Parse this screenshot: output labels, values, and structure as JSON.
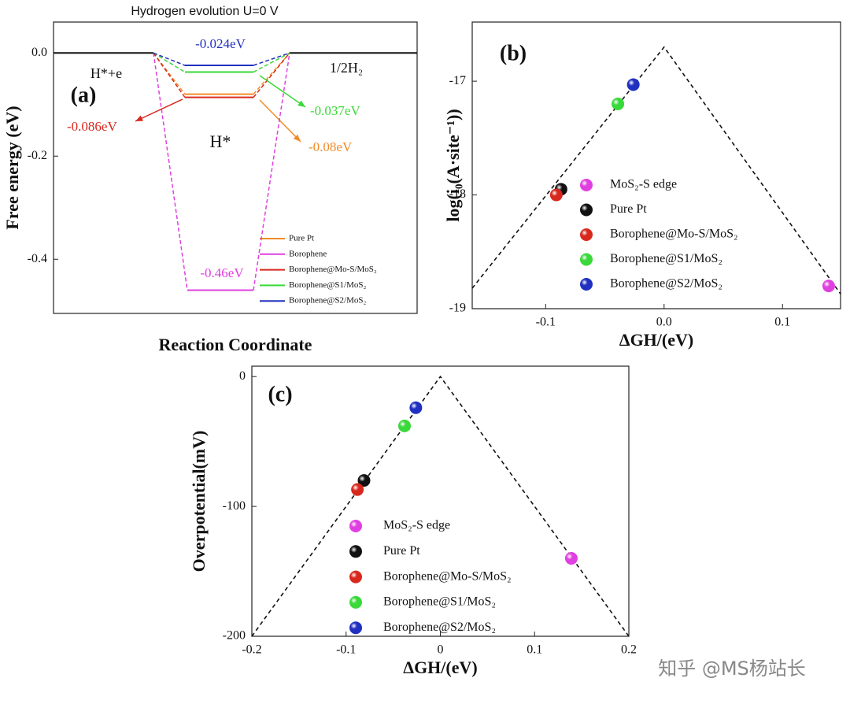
{
  "watermark": "知乎 @MS杨站长",
  "chart_data": [
    {
      "type": "step",
      "panel": "(a)",
      "title": "Hydrogen evolution U=0 V",
      "x_label": "Reaction Coordinate",
      "y_label": "Free energy (eV)",
      "states": [
        "H*+e",
        "H*",
        "1/2H₂"
      ],
      "ylim": [
        -0.505,
        0.06
      ],
      "yticks": [
        {
          "value": 0,
          "label": "0.0"
        },
        -0.2,
        -0.4
      ],
      "series": [
        {
          "name": "Pure Pt",
          "color": "#f08c2a",
          "values": [
            -0.08
          ],
          "value_labels": [
            "-0.08eV"
          ]
        },
        {
          "name": "Borophene",
          "color": "#e040e0",
          "values": [
            -0.46
          ],
          "value_labels": [
            "-0.46eV"
          ]
        },
        {
          "name": "Borophene@Mo-S/MoS₂",
          "color": "#d8281e",
          "values": [
            -0.086
          ],
          "value_labels": [
            "-0.086eV"
          ]
        },
        {
          "name": "Borophene@S1/MoS₂",
          "color": "#39d939",
          "values": [
            -0.037
          ],
          "value_labels": [
            "-0.037eV"
          ]
        },
        {
          "name": "Borophene@S2/MoS₂",
          "color": "#2030c0",
          "values": [
            -0.024
          ],
          "value_labels": [
            "-0.024eV"
          ]
        }
      ]
    },
    {
      "type": "scatter",
      "panel": "(b)",
      "x_label": "ΔGH/(eV)",
      "y_label": "log(i₀(A·site⁻¹))",
      "xlim": [
        -0.162,
        0.149
      ],
      "ylim": [
        -19,
        -16.48
      ],
      "xticks": [
        -0.1,
        {
          "value": 0,
          "label": "0.0"
        },
        0.1
      ],
      "yticks": [
        -17,
        -18,
        -19
      ],
      "trend": {
        "x": [
          -0.162,
          0,
          0.149
        ],
        "y": [
          -18.82,
          -16.7,
          -18.87
        ]
      },
      "series": [
        {
          "name": "MoS₂-S edge",
          "color": "#e040e0",
          "x": [
            0.139
          ],
          "values": [
            -18.8
          ]
        },
        {
          "name": "Pure Pt",
          "color": "#111111",
          "x": [
            -0.087
          ],
          "values": [
            -17.95
          ]
        },
        {
          "name": "Borophene@Mo-S/MoS₂",
          "color": "#d8281e",
          "x": [
            -0.091
          ],
          "values": [
            -18.0
          ]
        },
        {
          "name": "Borophene@S1/MoS₂",
          "color": "#39d939",
          "x": [
            -0.039
          ],
          "values": [
            -17.2
          ]
        },
        {
          "name": "Borophene@S2/MoS₂",
          "color": "#2030c0",
          "x": [
            -0.026
          ],
          "values": [
            -17.03
          ]
        }
      ]
    },
    {
      "type": "scatter",
      "panel": "(c)",
      "x_label": "ΔGH/(eV)",
      "y_label": "Overpotential(mV)",
      "xlim": [
        -0.2,
        0.2
      ],
      "ylim": [
        -200,
        8
      ],
      "xticks": [
        -0.2,
        -0.1,
        0,
        0.1,
        0.2
      ],
      "yticks": [
        0,
        -100,
        -200
      ],
      "trend": {
        "x": [
          -0.2,
          0,
          0.2
        ],
        "y": [
          -200,
          0,
          -200
        ]
      },
      "series": [
        {
          "name": "MoS₂-S edge",
          "color": "#e040e0",
          "x": [
            0.139
          ],
          "values": [
            -140
          ]
        },
        {
          "name": "Pure Pt",
          "color": "#111111",
          "x": [
            -0.081
          ],
          "values": [
            -80
          ]
        },
        {
          "name": "Borophene@Mo-S/MoS₂",
          "color": "#d8281e",
          "x": [
            -0.088
          ],
          "values": [
            -87
          ]
        },
        {
          "name": "Borophene@S1/MoS₂",
          "color": "#39d939",
          "x": [
            -0.038
          ],
          "values": [
            -38
          ]
        },
        {
          "name": "Borophene@S2/MoS₂",
          "color": "#2030c0",
          "x": [
            -0.026
          ],
          "values": [
            -24
          ]
        }
      ]
    }
  ]
}
